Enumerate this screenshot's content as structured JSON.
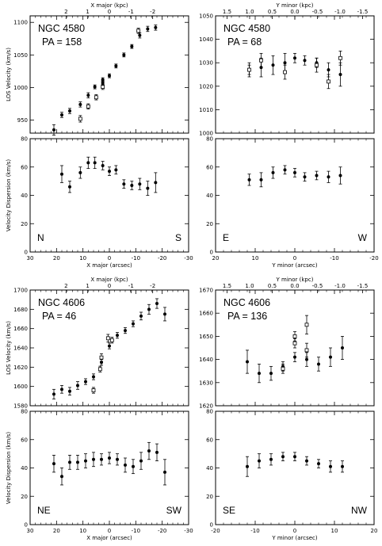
{
  "chart_data": [
    {
      "type": "scatter",
      "galaxy": "NGC 4580",
      "pa_label": "PA = 158",
      "xlabel": "X major (arcsec)",
      "top_xlabel": "X major  (kpc)",
      "xlim": [
        30,
        -30
      ],
      "xticks": [
        30,
        20,
        10,
        0,
        -10,
        -20,
        -30
      ],
      "top_xticks": [
        2,
        1,
        0,
        -1,
        -2
      ],
      "top_scale": 8.2,
      "velocity": {
        "ylabel": "LOS Velocity (km/s)",
        "ylim": [
          930,
          1110
        ],
        "yticks": [
          950,
          1000,
          1050,
          1100
        ],
        "filled": [
          {
            "x": 21,
            "y": 935,
            "e": 8
          },
          {
            "x": 18,
            "y": 958,
            "e": 4
          },
          {
            "x": 15,
            "y": 964,
            "e": 4
          },
          {
            "x": 11,
            "y": 974,
            "e": 4
          },
          {
            "x": 8,
            "y": 988,
            "e": 4
          },
          {
            "x": 5.5,
            "y": 1001,
            "e": 3
          },
          {
            "x": 2.5,
            "y": 1012,
            "e": 3
          },
          {
            "x": 2.5,
            "y": 1007,
            "e": 3
          },
          {
            "x": 0,
            "y": 1018,
            "e": 3
          },
          {
            "x": -2.5,
            "y": 1033,
            "e": 3
          },
          {
            "x": -5.5,
            "y": 1050,
            "e": 3
          },
          {
            "x": -8.5,
            "y": 1063,
            "e": 3
          },
          {
            "x": -11.5,
            "y": 1080,
            "e": 4
          },
          {
            "x": -14.5,
            "y": 1090,
            "e": 4
          },
          {
            "x": -17.5,
            "y": 1092,
            "e": 4
          }
        ],
        "open": [
          {
            "x": 11,
            "y": 952,
            "e": 5
          },
          {
            "x": 8,
            "y": 971,
            "e": 4
          },
          {
            "x": 5,
            "y": 985,
            "e": 4
          },
          {
            "x": 2.5,
            "y": 1001,
            "e": 4
          },
          {
            "x": -11,
            "y": 1087,
            "e": 4
          }
        ]
      },
      "dispersion": {
        "ylabel": "Velocity Dispersion (km/s)",
        "ylim": [
          0,
          80
        ],
        "yticks": [
          0,
          20,
          40,
          60,
          80
        ],
        "points": [
          {
            "x": 18,
            "y": 55,
            "e": 6
          },
          {
            "x": 15,
            "y": 46,
            "e": 4
          },
          {
            "x": 11,
            "y": 56,
            "e": 4
          },
          {
            "x": 8,
            "y": 63,
            "e": 4
          },
          {
            "x": 5.5,
            "y": 63,
            "e": 4
          },
          {
            "x": 2.5,
            "y": 61,
            "e": 3
          },
          {
            "x": 0,
            "y": 57,
            "e": 3
          },
          {
            "x": -2.5,
            "y": 58,
            "e": 3
          },
          {
            "x": -5.5,
            "y": 48,
            "e": 3
          },
          {
            "x": -8.5,
            "y": 47,
            "e": 3
          },
          {
            "x": -11.5,
            "y": 48,
            "e": 4
          },
          {
            "x": -14.5,
            "y": 45,
            "e": 5
          },
          {
            "x": -17.5,
            "y": 49,
            "e": 7
          }
        ]
      },
      "corner_left": "N",
      "corner_right": "S"
    },
    {
      "type": "scatter",
      "galaxy": "NGC 4580",
      "pa_label": "PA = 68",
      "xlabel": "Y minor (arcsec)",
      "top_xlabel": "Y minor  (kpc)",
      "xlim": [
        20,
        -20
      ],
      "xticks": [
        20,
        10,
        0,
        -10,
        -20
      ],
      "top_xticks": [
        1.5,
        1.0,
        0.5,
        0.0,
        -0.5,
        -1.0,
        -1.5
      ],
      "top_scale": 11.4,
      "velocity": {
        "ylabel": "",
        "ylim": [
          1000,
          1050
        ],
        "yticks": [
          1000,
          1010,
          1020,
          1030,
          1040,
          1050
        ],
        "filled": [
          {
            "x": 11.5,
            "y": 1027,
            "e": 3
          },
          {
            "x": 8.5,
            "y": 1028,
            "e": 4
          },
          {
            "x": 5.5,
            "y": 1029,
            "e": 4
          },
          {
            "x": 2.5,
            "y": 1030,
            "e": 4
          },
          {
            "x": 0,
            "y": 1032,
            "e": 2
          },
          {
            "x": -2.5,
            "y": 1031,
            "e": 2
          },
          {
            "x": -5.5,
            "y": 1030,
            "e": 2
          },
          {
            "x": -8.5,
            "y": 1027,
            "e": 3
          },
          {
            "x": -11.5,
            "y": 1025,
            "e": 5
          }
        ],
        "open": [
          {
            "x": 11.5,
            "y": 1027,
            "e": 2
          },
          {
            "x": 8.5,
            "y": 1031,
            "e": 3
          },
          {
            "x": 2.5,
            "y": 1026,
            "e": 3
          },
          {
            "x": -5.5,
            "y": 1029,
            "e": 3
          },
          {
            "x": -8.5,
            "y": 1022,
            "e": 3
          },
          {
            "x": -11.5,
            "y": 1032,
            "e": 3
          }
        ]
      },
      "dispersion": {
        "ylabel": "",
        "ylim": [
          0,
          80
        ],
        "yticks": [
          0,
          20,
          40,
          60,
          80
        ],
        "points": [
          {
            "x": 11.5,
            "y": 51,
            "e": 4
          },
          {
            "x": 8.5,
            "y": 51,
            "e": 5
          },
          {
            "x": 5.5,
            "y": 56,
            "e": 4
          },
          {
            "x": 2.5,
            "y": 58,
            "e": 3
          },
          {
            "x": 0,
            "y": 56,
            "e": 3
          },
          {
            "x": -2.5,
            "y": 53,
            "e": 3
          },
          {
            "x": -5.5,
            "y": 54,
            "e": 3
          },
          {
            "x": -8.5,
            "y": 53,
            "e": 4
          },
          {
            "x": -11.5,
            "y": 54,
            "e": 6
          }
        ]
      },
      "corner_left": "E",
      "corner_right": "W"
    },
    {
      "type": "scatter",
      "galaxy": "NGC 4606",
      "pa_label": "PA = 46",
      "xlabel": "X major (arcsec)",
      "top_xlabel": "X major  (kpc)",
      "xlim": [
        30,
        -30
      ],
      "xticks": [
        30,
        20,
        10,
        0,
        -10,
        -20,
        -30
      ],
      "top_xticks": [
        2,
        1,
        0,
        -1,
        -2
      ],
      "top_scale": 8.2,
      "velocity": {
        "ylabel": "LOS Velocity (km/s)",
        "ylim": [
          1580,
          1700
        ],
        "yticks": [
          1580,
          1600,
          1620,
          1640,
          1660,
          1680,
          1700
        ],
        "filled": [
          {
            "x": 21,
            "y": 1592,
            "e": 5
          },
          {
            "x": 18,
            "y": 1597,
            "e": 4
          },
          {
            "x": 15,
            "y": 1595,
            "e": 4
          },
          {
            "x": 12,
            "y": 1601,
            "e": 4
          },
          {
            "x": 9,
            "y": 1605,
            "e": 3
          },
          {
            "x": 6,
            "y": 1610,
            "e": 3
          },
          {
            "x": 3,
            "y": 1625,
            "e": 3
          },
          {
            "x": 0,
            "y": 1642,
            "e": 3
          },
          {
            "x": -3,
            "y": 1653,
            "e": 3
          },
          {
            "x": -6,
            "y": 1658,
            "e": 3
          },
          {
            "x": -9,
            "y": 1665,
            "e": 3
          },
          {
            "x": -12,
            "y": 1673,
            "e": 4
          },
          {
            "x": -15,
            "y": 1680,
            "e": 5
          },
          {
            "x": -18,
            "y": 1686,
            "e": 5
          },
          {
            "x": -21,
            "y": 1675,
            "e": 7
          }
        ],
        "open": [
          {
            "x": 6,
            "y": 1596,
            "e": 3
          },
          {
            "x": 3.5,
            "y": 1618,
            "e": 3
          },
          {
            "x": 3,
            "y": 1630,
            "e": 4
          },
          {
            "x": 0.5,
            "y": 1650,
            "e": 4
          },
          {
            "x": -1,
            "y": 1648,
            "e": 3
          }
        ]
      },
      "dispersion": {
        "ylabel": "Velocity Dispersion (km/s)",
        "ylim": [
          0,
          80
        ],
        "yticks": [
          0,
          20,
          40,
          60,
          80
        ],
        "points": [
          {
            "x": 21,
            "y": 43,
            "e": 6
          },
          {
            "x": 18,
            "y": 34,
            "e": 6
          },
          {
            "x": 15,
            "y": 44,
            "e": 5
          },
          {
            "x": 12,
            "y": 44,
            "e": 5
          },
          {
            "x": 9,
            "y": 45,
            "e": 5
          },
          {
            "x": 6,
            "y": 46,
            "e": 5
          },
          {
            "x": 3,
            "y": 46,
            "e": 4
          },
          {
            "x": 0,
            "y": 47,
            "e": 4
          },
          {
            "x": -3,
            "y": 46,
            "e": 4
          },
          {
            "x": -6,
            "y": 42,
            "e": 5
          },
          {
            "x": -9,
            "y": 41,
            "e": 5
          },
          {
            "x": -12,
            "y": 45,
            "e": 6
          },
          {
            "x": -15,
            "y": 52,
            "e": 6
          },
          {
            "x": -18,
            "y": 51,
            "e": 6
          },
          {
            "x": -21,
            "y": 37,
            "e": 9
          }
        ]
      },
      "corner_left": "NE",
      "corner_right": "SW"
    },
    {
      "type": "scatter",
      "galaxy": "NGC 4606",
      "pa_label": "PA = 136",
      "xlabel": "Y minor (arcsec)",
      "top_xlabel": "Y minor  (kpc)",
      "xlim": [
        -20,
        20
      ],
      "xticks": [
        -20,
        -10,
        0,
        10,
        20
      ],
      "top_xticks": [
        1.5,
        1.0,
        0.5,
        0.0,
        -0.5,
        -1.0,
        -1.5
      ],
      "top_scale": -11.4,
      "velocity": {
        "ylabel": "",
        "ylim": [
          1620,
          1670
        ],
        "yticks": [
          1620,
          1630,
          1640,
          1650,
          1660,
          1670
        ],
        "filled": [
          {
            "x": -12,
            "y": 1639,
            "e": 5
          },
          {
            "x": -9,
            "y": 1634,
            "e": 4
          },
          {
            "x": -6,
            "y": 1634,
            "e": 3
          },
          {
            "x": -3,
            "y": 1637,
            "e": 2
          },
          {
            "x": 0,
            "y": 1641,
            "e": 2
          },
          {
            "x": 3,
            "y": 1640,
            "e": 3
          },
          {
            "x": 6,
            "y": 1638,
            "e": 3
          },
          {
            "x": 9,
            "y": 1641,
            "e": 4
          },
          {
            "x": 12,
            "y": 1645,
            "e": 5
          }
        ],
        "open": [
          {
            "x": -3,
            "y": 1636,
            "e": 2
          },
          {
            "x": 0,
            "y": 1650,
            "e": 2
          },
          {
            "x": 0,
            "y": 1647,
            "e": 2
          },
          {
            "x": 3,
            "y": 1655,
            "e": 4
          },
          {
            "x": 3,
            "y": 1644,
            "e": 3
          }
        ]
      },
      "dispersion": {
        "ylabel": "",
        "ylim": [
          0,
          80
        ],
        "yticks": [
          0,
          20,
          40,
          60,
          80
        ],
        "points": [
          {
            "x": -12,
            "y": 41,
            "e": 7
          },
          {
            "x": -9,
            "y": 45,
            "e": 5
          },
          {
            "x": -6,
            "y": 46,
            "e": 4
          },
          {
            "x": -3,
            "y": 48,
            "e": 3
          },
          {
            "x": 0,
            "y": 48,
            "e": 3
          },
          {
            "x": 3,
            "y": 45,
            "e": 3
          },
          {
            "x": 6,
            "y": 43,
            "e": 3
          },
          {
            "x": 9,
            "y": 41,
            "e": 4
          },
          {
            "x": 12,
            "y": 41,
            "e": 4
          }
        ]
      },
      "corner_left": "SE",
      "corner_right": "NW"
    }
  ]
}
